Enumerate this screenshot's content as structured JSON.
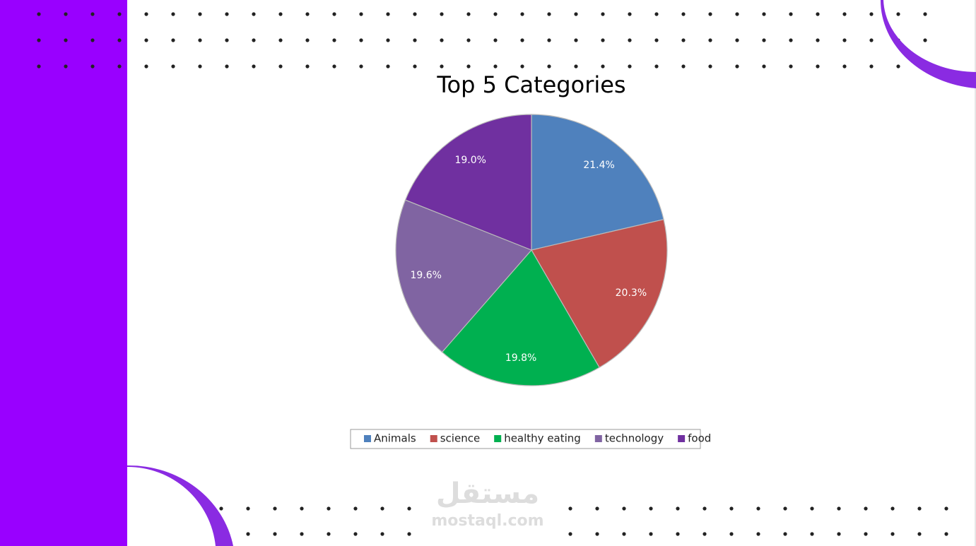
{
  "chart_data": {
    "type": "pie",
    "title": "Top 5 Categories",
    "categories": [
      "Animals",
      "science",
      "healthy eating",
      "technology",
      "food"
    ],
    "values": [
      21.4,
      20.3,
      19.8,
      19.6,
      19.0
    ],
    "value_labels": [
      "21.4%",
      "20.3%",
      "19.8%",
      "19.6%",
      "19.0%"
    ],
    "colors": [
      "#4f81bd",
      "#c0504d",
      "#00b050",
      "#8064a2",
      "#7030a0"
    ],
    "legend": "bottom"
  },
  "watermark": {
    "logo": "مستقل",
    "site": "mostaql.com"
  }
}
